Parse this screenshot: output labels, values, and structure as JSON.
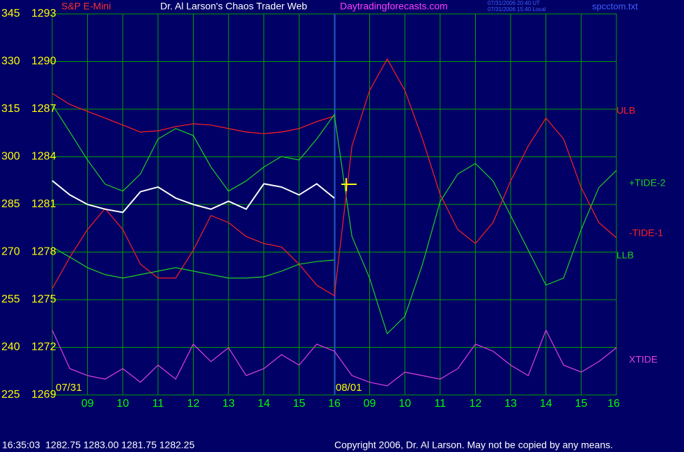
{
  "chart_data": {
    "type": "line",
    "title": "S&P E-Mini",
    "site": "Dr. Al Larson's Chaos Trader Web",
    "url": "Daytradingforecasts.com",
    "timestamps": [
      "07/31/2006 20:40 UT",
      "07/31/2006 15:40 Local"
    ],
    "file": "spcctom.txt",
    "day_labels": [
      "07/31",
      "08/01"
    ],
    "quote": "16:35:03  1282.75 1283.00 1281.75 1282.25",
    "copyright": "Copyright 2006, Dr. Al Larson. May not be copied by any means.",
    "xlim": [
      0,
      16
    ],
    "xticks": [
      {
        "value": 1,
        "label": "09"
      },
      {
        "value": 2,
        "label": "10"
      },
      {
        "value": 3,
        "label": "11"
      },
      {
        "value": 4,
        "label": "12"
      },
      {
        "value": 5,
        "label": "13"
      },
      {
        "value": 6,
        "label": "14"
      },
      {
        "value": 7,
        "label": "15"
      },
      {
        "value": 8,
        "label": "16"
      },
      {
        "value": 9,
        "label": "09"
      },
      {
        "value": 10,
        "label": "10"
      },
      {
        "value": 11,
        "label": "11"
      },
      {
        "value": 12,
        "label": "12"
      },
      {
        "value": 13,
        "label": "13"
      },
      {
        "value": 14,
        "label": "14"
      },
      {
        "value": 15,
        "label": "15"
      },
      {
        "value": 16,
        "label": "16"
      }
    ],
    "ylim": [
      225,
      345
    ],
    "yticks": [
      225,
      240,
      255,
      270,
      285,
      300,
      315,
      330,
      345
    ],
    "y2lim": [
      1269,
      1293
    ],
    "y2ticks": [
      1269,
      1272,
      1275,
      1278,
      1281,
      1284,
      1287,
      1290,
      1293
    ],
    "grid": true,
    "x": [
      0,
      0.5,
      1,
      1.5,
      2,
      2.5,
      3,
      3.5,
      4,
      4.5,
      5,
      5.5,
      6,
      6.5,
      7,
      7.5,
      8,
      8.5,
      9,
      9.5,
      10,
      10.5,
      11,
      11.5,
      12,
      12.5,
      13,
      13.5,
      14,
      14.5,
      15,
      15.5,
      16
    ],
    "series": [
      {
        "name": "ULB",
        "color": "#ff2020",
        "values": [
          320,
          316.5,
          314.3,
          312.2,
          310,
          307.8,
          308.2,
          309.5,
          310.4,
          310,
          308.9,
          307.8,
          307.3,
          307.8,
          308.9,
          311.1,
          312.8,
          null,
          null,
          null,
          null,
          null,
          null,
          null,
          null,
          null,
          null,
          null,
          null,
          null,
          null,
          null,
          null
        ]
      },
      {
        "name": "+TIDE-2",
        "color": "#20d020",
        "values": [
          316.5,
          307.8,
          299,
          291.4,
          289.2,
          294.6,
          305.6,
          308.9,
          306.7,
          296.8,
          289.2,
          292.4,
          296.8,
          300.1,
          299,
          305.6,
          313.3,
          274.9,
          261.8,
          244.3,
          249.8,
          266.2,
          285.9,
          294.6,
          297.9,
          292.4,
          281.5,
          270.6,
          259.6,
          261.8,
          277.1,
          290.3,
          295.7
        ]
      },
      {
        "name": "-TIDE-1",
        "color": "#ff2020",
        "values": [
          258.5,
          268.4,
          277.1,
          283.7,
          277.1,
          266.2,
          261.8,
          261.8,
          270.6,
          281.5,
          279.3,
          274.9,
          272.7,
          271.6,
          266.2,
          259.6,
          256.3,
          303.4,
          320.9,
          330.8,
          320.9,
          305.6,
          288.1,
          277.1,
          272.7,
          279.3,
          292.4,
          303.4,
          312.2,
          305.6,
          290.3,
          279.3,
          274.5
        ]
      },
      {
        "name": "LLB",
        "color": "#20d020",
        "values": [
          271.6,
          268.4,
          265.1,
          262.9,
          261.8,
          262.9,
          264,
          265.1,
          264,
          262.9,
          261.8,
          261.8,
          262.2,
          264,
          266.2,
          267,
          267.5,
          null,
          null,
          null,
          null,
          null,
          null,
          null,
          null,
          null,
          null,
          null,
          null,
          null,
          null,
          null,
          null
        ]
      },
      {
        "name": "XTIDE",
        "color": "#e040e0",
        "values": [
          245.4,
          233.3,
          231.1,
          230,
          233.3,
          229,
          234.4,
          230,
          241,
          235.5,
          239.9,
          231.1,
          233.3,
          237.7,
          234.4,
          241,
          238.8,
          231.1,
          229,
          227.9,
          232.2,
          231.1,
          230,
          233.3,
          241,
          238.8,
          234.4,
          231.1,
          245.4,
          234.4,
          232.2,
          235.5,
          239.9
        ]
      },
      {
        "color": "#ffffff",
        "axis": "y2",
        "values": [
          1282.5,
          1281.6,
          1281.0,
          1280.7,
          1280.5,
          1281.8,
          1282.1,
          1281.4,
          1281.0,
          1280.7,
          1281.2,
          1280.7,
          1282.3,
          1282.1,
          1281.6,
          1282.3,
          1281.4,
          null,
          null,
          null,
          null,
          null,
          null,
          null,
          null,
          null,
          null,
          null,
          null,
          null,
          null,
          null,
          null
        ]
      }
    ]
  }
}
